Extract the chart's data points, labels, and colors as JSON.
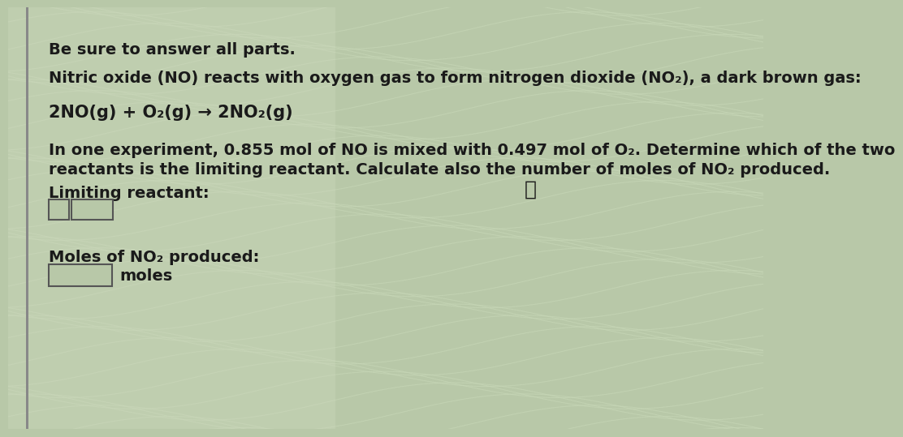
{
  "bg_color": "#b8c8a8",
  "panel_left_color": "#d4ddc8",
  "text_color": "#1a1a1a",
  "title": "Be sure to answer all parts.",
  "line1": "Nitric oxide (NO) reacts with oxygen gas to form nitrogen dioxide (NO₂), a dark brown gas:",
  "equation": "2NO(g) + O₂(g) → 2NO₂(g)",
  "para_line1": "In one experiment, 0.855 mol of NO is mixed with 0.497 mol of O₂. Determine which of the two",
  "para_line2": "reactants is the limiting reactant. Calculate also the number of moles of NO₂ produced.",
  "label1": "Limiting reactant:",
  "label2": "Moles of NO₂ produced:",
  "label3": "moles",
  "left_bar_color": "#888888",
  "box_edge_color": "#555555",
  "font_size": 14
}
